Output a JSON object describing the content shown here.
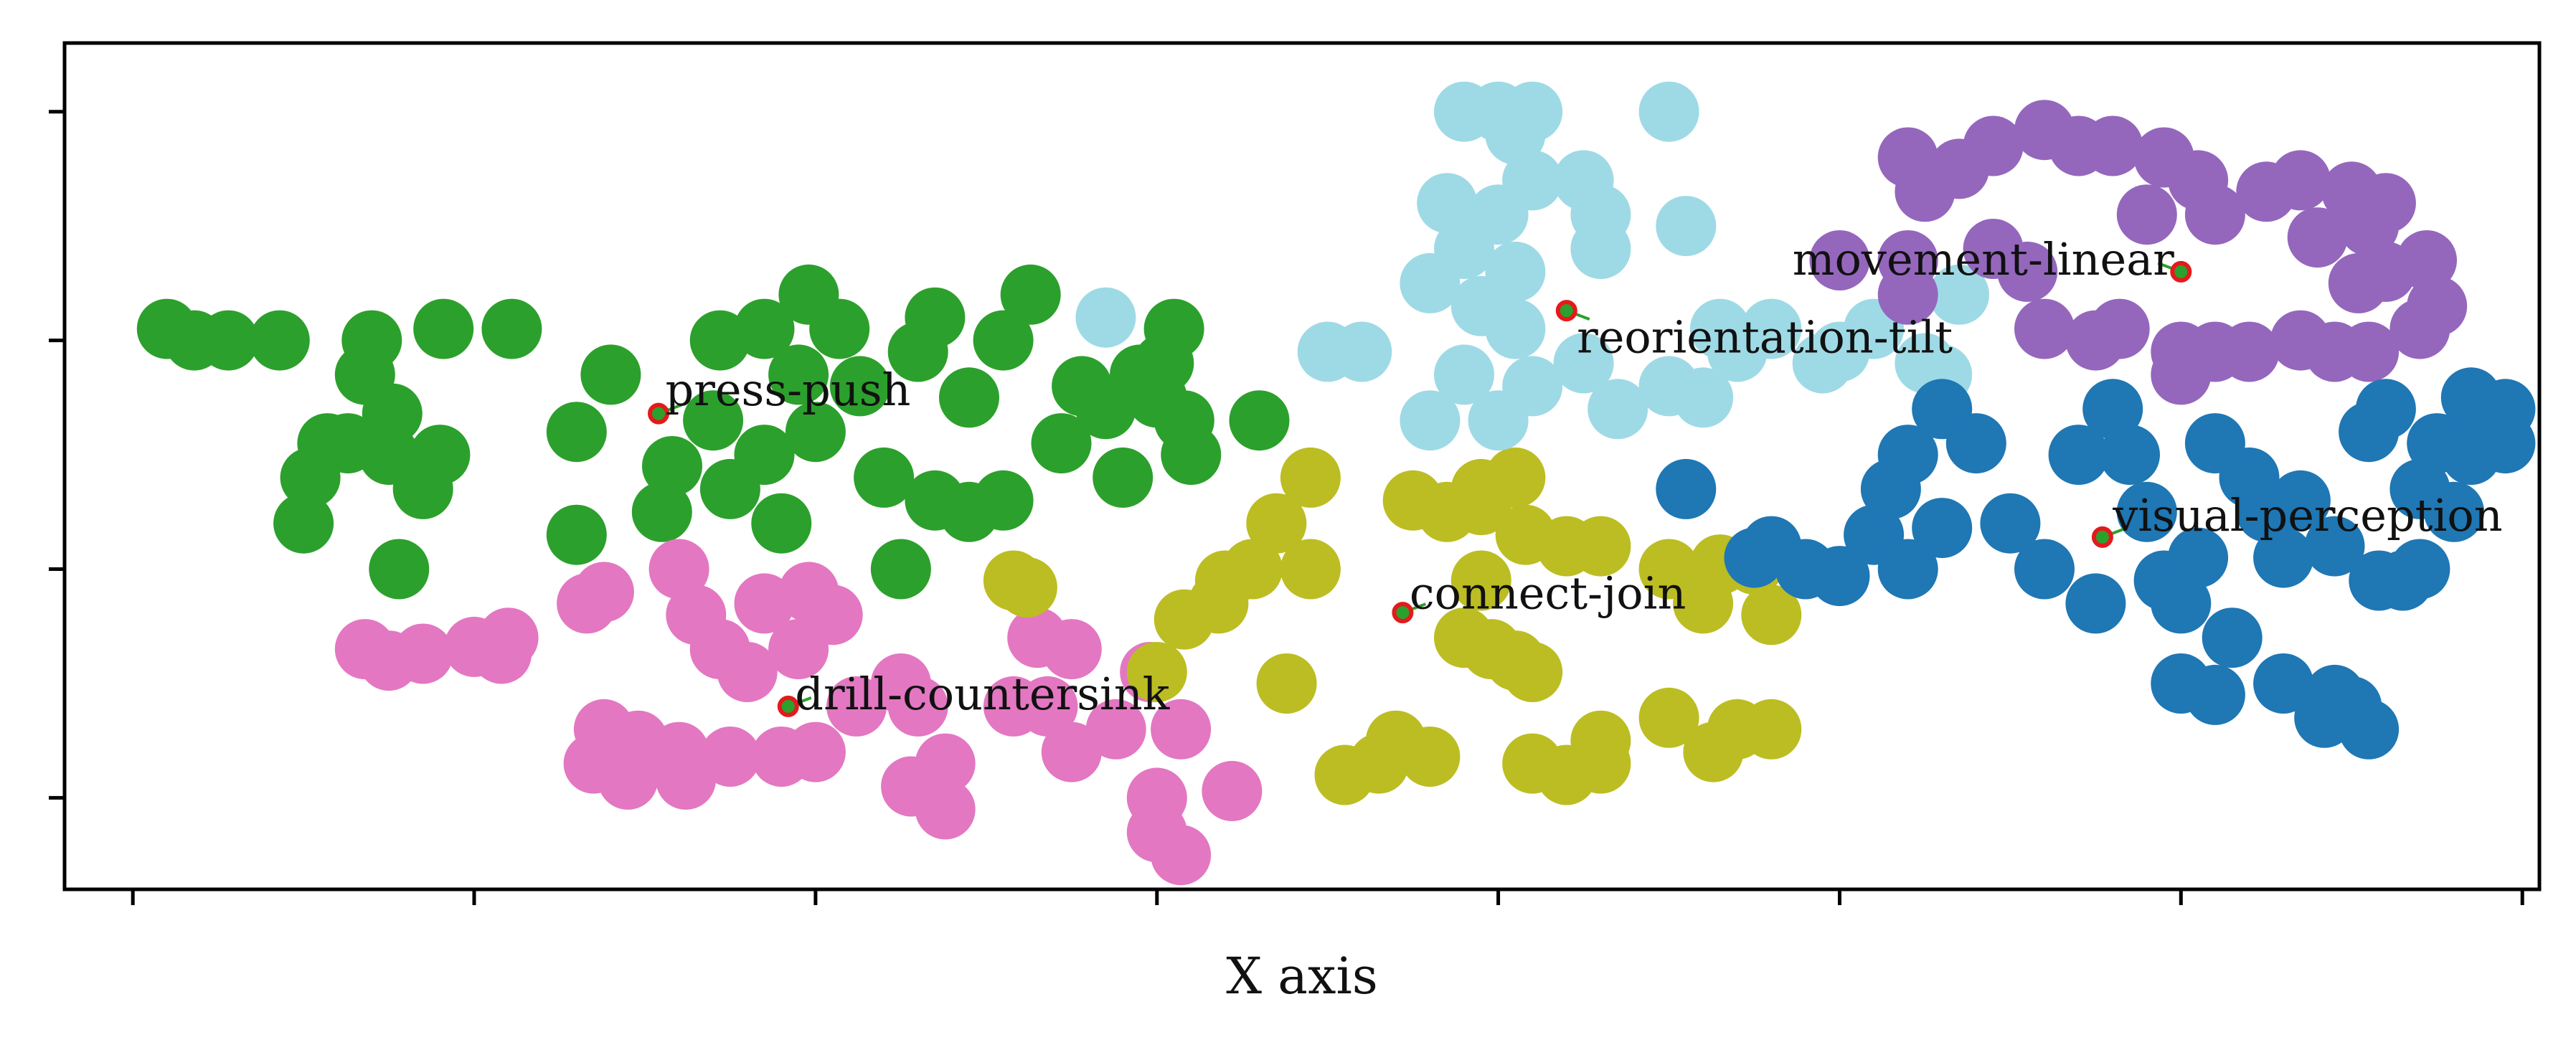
{
  "chart_data": {
    "type": "scatter",
    "xlabel": "X axis",
    "ylabel": "",
    "title": "",
    "xlim": [
      -0.2,
      7.05
    ],
    "ylim": [
      -0.4,
      3.3
    ],
    "xticks": [
      0,
      1,
      2,
      3,
      4,
      5,
      6,
      7
    ],
    "yticks": [
      0,
      1,
      2,
      3
    ],
    "grid": false,
    "legend": "none",
    "colors": {
      "tab_blue": "#1f77b4",
      "tab_purple": "#9467bd",
      "tab_cyan": "#9edae5",
      "tab_olive": "#bcbd22",
      "tab_green": "#2ca02c",
      "tab_pink": "#e377c2",
      "marker_edge": "#e31a1c",
      "marker_fill": "#2ca02c",
      "leader": "#2ca02c"
    },
    "series": [
      {
        "color": "#2ca02c",
        "points": [
          [
            0.1,
            2.05
          ],
          [
            0.18,
            2.0
          ],
          [
            0.28,
            2.0
          ],
          [
            0.43,
            2.0
          ],
          [
            0.68,
            1.85
          ],
          [
            0.7,
            2.0
          ],
          [
            0.63,
            1.55
          ],
          [
            0.52,
            1.4
          ],
          [
            0.5,
            1.2
          ],
          [
            0.57,
            1.55
          ],
          [
            0.75,
            1.5
          ],
          [
            0.85,
            1.35
          ],
          [
            0.9,
            1.5
          ],
          [
            0.76,
            1.68
          ],
          [
            0.91,
            2.05
          ],
          [
            1.11,
            2.05
          ],
          [
            1.3,
            1.6
          ],
          [
            1.4,
            1.85
          ],
          [
            1.3,
            1.15
          ],
          [
            1.55,
            1.25
          ],
          [
            1.58,
            1.45
          ],
          [
            1.7,
            1.65
          ],
          [
            1.75,
            1.35
          ],
          [
            1.72,
            2.0
          ],
          [
            1.85,
            2.05
          ],
          [
            1.95,
            1.85
          ],
          [
            2.0,
            1.6
          ],
          [
            1.85,
            1.5
          ],
          [
            1.9,
            1.2
          ],
          [
            1.98,
            2.2
          ],
          [
            2.07,
            2.05
          ],
          [
            2.13,
            1.8
          ],
          [
            2.2,
            1.4
          ],
          [
            2.35,
            1.3
          ],
          [
            2.45,
            1.25
          ],
          [
            2.3,
            1.95
          ],
          [
            2.35,
            2.1
          ],
          [
            2.55,
            2.0
          ],
          [
            2.63,
            2.2
          ],
          [
            2.45,
            1.75
          ],
          [
            2.72,
            1.55
          ],
          [
            2.78,
            1.8
          ],
          [
            2.85,
            1.7
          ],
          [
            2.9,
            1.4
          ],
          [
            2.95,
            1.85
          ],
          [
            3.02,
            1.9
          ],
          [
            3.1,
            1.5
          ],
          [
            3.05,
            2.05
          ],
          [
            3.0,
            1.75
          ],
          [
            3.08,
            1.65
          ],
          [
            3.3,
            1.65
          ],
          [
            0.78,
            1.0
          ],
          [
            2.55,
            1.3
          ],
          [
            2.25,
            1.0
          ]
        ]
      },
      {
        "color": "#e377c2",
        "points": [
          [
            0.68,
            0.65
          ],
          [
            0.75,
            0.6
          ],
          [
            0.85,
            0.63
          ],
          [
            1.0,
            0.66
          ],
          [
            1.08,
            0.63
          ],
          [
            1.1,
            0.7
          ],
          [
            1.33,
            0.85
          ],
          [
            1.38,
            0.9
          ],
          [
            1.6,
            1.0
          ],
          [
            1.65,
            0.8
          ],
          [
            1.85,
            0.85
          ],
          [
            1.98,
            0.9
          ],
          [
            2.05,
            0.8
          ],
          [
            1.95,
            0.65
          ],
          [
            1.72,
            0.65
          ],
          [
            1.8,
            0.55
          ],
          [
            1.38,
            0.3
          ],
          [
            1.48,
            0.25
          ],
          [
            1.6,
            0.2
          ],
          [
            1.75,
            0.18
          ],
          [
            1.9,
            0.18
          ],
          [
            2.0,
            0.2
          ],
          [
            1.35,
            0.15
          ],
          [
            1.45,
            0.08
          ],
          [
            1.62,
            0.08
          ],
          [
            2.12,
            0.4
          ],
          [
            2.25,
            0.5
          ],
          [
            2.3,
            0.4
          ],
          [
            2.38,
            0.15
          ],
          [
            2.28,
            0.05
          ],
          [
            2.38,
            -0.05
          ],
          [
            2.58,
            0.4
          ],
          [
            2.68,
            0.4
          ],
          [
            2.75,
            0.65
          ],
          [
            2.65,
            0.7
          ],
          [
            2.75,
            0.2
          ],
          [
            2.88,
            0.3
          ],
          [
            3.07,
            0.3
          ],
          [
            2.98,
            0.55
          ],
          [
            3.0,
            0.0
          ],
          [
            3.22,
            0.03
          ],
          [
            3.07,
            -0.25
          ],
          [
            3.0,
            -0.15
          ]
        ]
      },
      {
        "color": "#bcbd22",
        "points": [
          [
            2.58,
            0.95
          ],
          [
            2.62,
            0.92
          ],
          [
            3.0,
            0.55
          ],
          [
            3.08,
            0.78
          ],
          [
            3.18,
            0.85
          ],
          [
            3.2,
            0.95
          ],
          [
            3.28,
            1.0
          ],
          [
            3.45,
            1.4
          ],
          [
            3.35,
            1.2
          ],
          [
            3.45,
            1.0
          ],
          [
            3.38,
            0.5
          ],
          [
            3.75,
            1.3
          ],
          [
            3.85,
            1.25
          ],
          [
            3.95,
            1.28
          ],
          [
            4.05,
            1.4
          ],
          [
            4.08,
            1.15
          ],
          [
            3.95,
            1.35
          ],
          [
            3.95,
            0.95
          ],
          [
            3.9,
            0.7
          ],
          [
            3.98,
            0.65
          ],
          [
            4.05,
            0.6
          ],
          [
            4.1,
            0.55
          ],
          [
            4.2,
            1.1
          ],
          [
            4.3,
            1.1
          ],
          [
            4.5,
            1.0
          ],
          [
            4.65,
            1.02
          ],
          [
            4.8,
            0.8
          ],
          [
            4.75,
            1.02
          ],
          [
            4.6,
            0.85
          ],
          [
            4.5,
            0.35
          ],
          [
            4.63,
            0.2
          ],
          [
            4.7,
            0.3
          ],
          [
            4.3,
            0.25
          ],
          [
            4.3,
            0.15
          ],
          [
            4.1,
            0.15
          ],
          [
            4.2,
            0.1
          ],
          [
            3.65,
            0.15
          ],
          [
            3.8,
            0.18
          ],
          [
            3.55,
            0.1
          ],
          [
            3.7,
            0.25
          ],
          [
            4.8,
            0.3
          ]
        ]
      },
      {
        "color": "#9edae5",
        "points": [
          [
            2.85,
            2.1
          ],
          [
            3.5,
            1.95
          ],
          [
            3.6,
            1.95
          ],
          [
            3.8,
            1.65
          ],
          [
            3.9,
            1.85
          ],
          [
            4.0,
            1.65
          ],
          [
            3.8,
            2.25
          ],
          [
            3.9,
            2.4
          ],
          [
            3.85,
            2.6
          ],
          [
            4.0,
            2.55
          ],
          [
            4.05,
            2.9
          ],
          [
            4.1,
            3.0
          ],
          [
            4.0,
            3.0
          ],
          [
            3.9,
            3.0
          ],
          [
            4.1,
            2.7
          ],
          [
            4.25,
            2.7
          ],
          [
            4.3,
            2.55
          ],
          [
            4.5,
            3.0
          ],
          [
            4.55,
            2.5
          ],
          [
            4.05,
            2.3
          ],
          [
            3.95,
            2.15
          ],
          [
            4.05,
            2.05
          ],
          [
            4.1,
            1.8
          ],
          [
            4.25,
            1.9
          ],
          [
            4.35,
            1.7
          ],
          [
            4.5,
            1.8
          ],
          [
            4.65,
            2.05
          ],
          [
            4.7,
            1.95
          ],
          [
            4.8,
            2.05
          ],
          [
            4.95,
            1.9
          ],
          [
            5.0,
            1.95
          ],
          [
            5.1,
            2.05
          ],
          [
            5.25,
            1.9
          ],
          [
            5.3,
            1.85
          ],
          [
            5.35,
            2.2
          ],
          [
            4.6,
            1.75
          ],
          [
            4.3,
            2.4
          ]
        ]
      },
      {
        "color": "#9467bd",
        "points": [
          [
            5.2,
            2.8
          ],
          [
            5.25,
            2.65
          ],
          [
            5.35,
            2.75
          ],
          [
            5.45,
            2.85
          ],
          [
            5.6,
            2.92
          ],
          [
            5.7,
            2.85
          ],
          [
            5.8,
            2.85
          ],
          [
            5.95,
            2.8
          ],
          [
            6.05,
            2.7
          ],
          [
            5.9,
            2.55
          ],
          [
            6.1,
            2.55
          ],
          [
            6.25,
            2.65
          ],
          [
            6.35,
            2.7
          ],
          [
            6.5,
            2.65
          ],
          [
            6.6,
            2.6
          ],
          [
            6.55,
            2.5
          ],
          [
            6.6,
            2.3
          ],
          [
            6.72,
            2.35
          ],
          [
            6.75,
            2.15
          ],
          [
            6.7,
            2.05
          ],
          [
            6.55,
            1.95
          ],
          [
            6.45,
            1.95
          ],
          [
            6.35,
            2.0
          ],
          [
            6.2,
            1.95
          ],
          [
            6.1,
            1.95
          ],
          [
            6.0,
            1.95
          ],
          [
            6.0,
            1.85
          ],
          [
            5.82,
            2.05
          ],
          [
            5.75,
            2.0
          ],
          [
            5.6,
            2.05
          ],
          [
            5.55,
            2.3
          ],
          [
            5.45,
            2.4
          ],
          [
            5.2,
            2.35
          ],
          [
            5.0,
            2.35
          ],
          [
            5.2,
            2.2
          ],
          [
            6.4,
            2.45
          ],
          [
            6.52,
            2.25
          ]
        ]
      },
      {
        "color": "#1f77b4",
        "points": [
          [
            4.55,
            1.35
          ],
          [
            4.75,
            1.05
          ],
          [
            4.8,
            1.1
          ],
          [
            4.9,
            1.0
          ],
          [
            5.0,
            0.97
          ],
          [
            5.1,
            1.15
          ],
          [
            5.2,
            1.0
          ],
          [
            5.3,
            1.18
          ],
          [
            5.15,
            1.35
          ],
          [
            5.2,
            1.5
          ],
          [
            5.3,
            1.7
          ],
          [
            5.4,
            1.55
          ],
          [
            5.5,
            1.2
          ],
          [
            5.6,
            1.0
          ],
          [
            5.75,
            0.85
          ],
          [
            5.7,
            1.5
          ],
          [
            5.85,
            1.5
          ],
          [
            5.9,
            1.25
          ],
          [
            5.95,
            0.95
          ],
          [
            6.05,
            1.05
          ],
          [
            6.0,
            0.85
          ],
          [
            6.15,
            0.7
          ],
          [
            6.25,
            1.25
          ],
          [
            6.3,
            1.05
          ],
          [
            6.0,
            0.5
          ],
          [
            6.1,
            0.45
          ],
          [
            6.3,
            0.5
          ],
          [
            6.42,
            0.35
          ],
          [
            6.45,
            0.45
          ],
          [
            6.5,
            0.4
          ],
          [
            6.55,
            0.3
          ],
          [
            6.58,
            0.95
          ],
          [
            6.65,
            0.95
          ],
          [
            6.7,
            1.0
          ],
          [
            6.7,
            1.35
          ],
          [
            6.75,
            1.55
          ],
          [
            6.85,
            1.5
          ],
          [
            6.85,
            1.75
          ],
          [
            6.95,
            1.7
          ],
          [
            6.95,
            1.55
          ],
          [
            6.55,
            1.6
          ],
          [
            6.6,
            1.7
          ],
          [
            6.8,
            1.25
          ],
          [
            6.45,
            1.1
          ],
          [
            6.35,
            1.3
          ],
          [
            6.2,
            1.4
          ],
          [
            6.1,
            1.55
          ],
          [
            5.8,
            1.7
          ]
        ]
      }
    ],
    "annotations": [
      {
        "text": "press-push",
        "x": 1.54,
        "y": 1.68,
        "align": "left",
        "dx": 0.02,
        "dy": 0.1
      },
      {
        "text": "drill-countersink",
        "x": 1.92,
        "y": 0.4,
        "align": "left",
        "dx": 0.02,
        "dy": 0.05
      },
      {
        "text": "connect-join",
        "x": 3.72,
        "y": 0.81,
        "align": "left",
        "dx": 0.02,
        "dy": 0.08
      },
      {
        "text": "reorientation-tilt",
        "x": 4.2,
        "y": 2.13,
        "align": "left",
        "dx": 0.03,
        "dy": -0.12
      },
      {
        "text": "movement-linear",
        "x": 6.0,
        "y": 2.3,
        "align": "right",
        "dx": -0.02,
        "dy": 0.05
      },
      {
        "text": "visual-perception",
        "x": 5.77,
        "y": 1.14,
        "align": "left",
        "dx": 0.03,
        "dy": 0.09
      }
    ]
  }
}
